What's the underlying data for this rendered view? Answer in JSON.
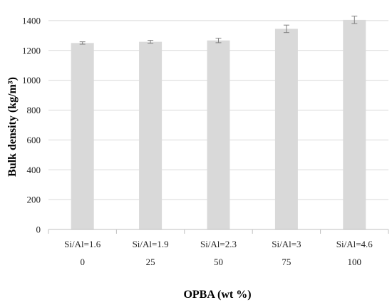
{
  "chart_data": {
    "type": "bar",
    "categories": [
      "Si/Al=1.6",
      "Si/Al=1.9",
      "Si/Al=2.3",
      "Si/Al=3",
      "Si/Al=4.6"
    ],
    "secondary_categories": [
      "0",
      "25",
      "50",
      "75",
      "100"
    ],
    "values": [
      1250,
      1258,
      1267,
      1345,
      1405
    ],
    "errors": [
      8,
      10,
      15,
      25,
      25
    ],
    "xlabel": "OPBA (wt %)",
    "ylabel": "Bulk density (kg/m³)",
    "ylim": [
      0,
      1500
    ],
    "yticks": [
      0,
      200,
      400,
      600,
      800,
      1000,
      1200,
      1400
    ],
    "grid": true,
    "bar_color": "#d9d9d9",
    "grid_color": "#d9d9d9",
    "error_bar_color": "#7f7f7f"
  }
}
